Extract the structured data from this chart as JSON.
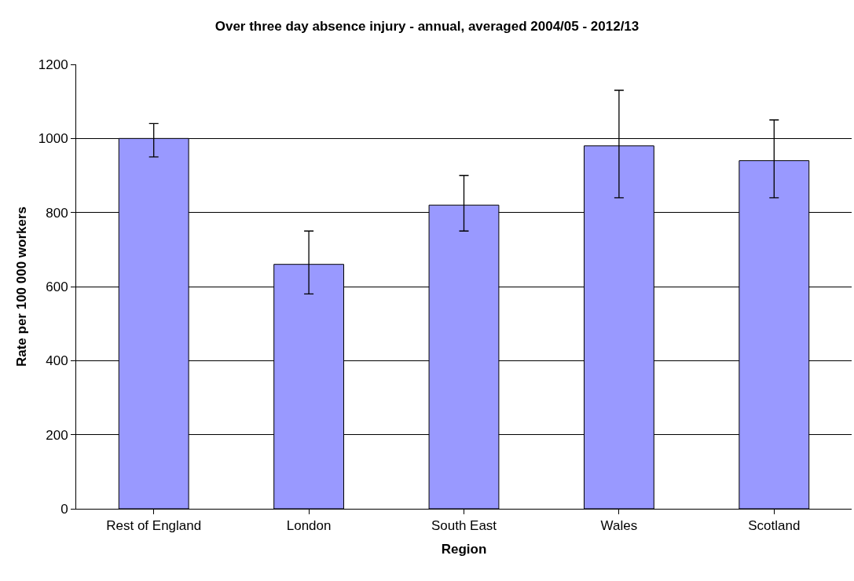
{
  "chart_data": {
    "type": "bar",
    "title": "Over three day absence injury - annual, averaged 2004/05 - 2012/13",
    "xlabel": "Region",
    "ylabel": "Rate per 100 000 workers",
    "categories": [
      "Rest of England",
      "London",
      "South East",
      "Wales",
      "Scotland"
    ],
    "values": [
      1000,
      660,
      820,
      980,
      940
    ],
    "errors": [
      [
        950,
        1040
      ],
      [
        580,
        750
      ],
      [
        750,
        900
      ],
      [
        840,
        1130
      ],
      [
        840,
        1050
      ]
    ],
    "color": "#9999ff",
    "ylim": [
      0,
      1200
    ],
    "yticks": [
      0,
      200,
      400,
      600,
      800,
      1000,
      1200
    ],
    "grid": "y"
  }
}
